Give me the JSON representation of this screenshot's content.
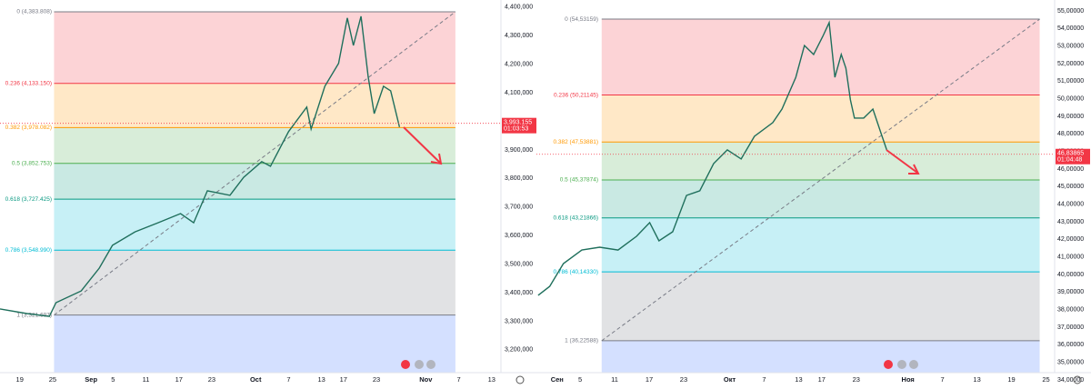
{
  "chart_data": [
    {
      "type": "line",
      "color": "#1f6f5c",
      "x": [
        -3.6,
        1.3,
        5.4,
        6.6,
        11.2,
        14.5,
        16.9,
        21,
        25.2,
        29.3,
        31.7,
        34.2,
        38.3,
        40.8,
        44.1,
        45.7,
        49,
        52.3,
        53.1,
        55.6,
        58.1,
        59.7,
        60.8,
        62.2,
        63.5,
        64.6,
        66.3,
        67.6,
        69.2
      ],
      "values": [
        3343000,
        3327000,
        3317000,
        3365000,
        3406000,
        3486000,
        3566000,
        3613000,
        3645000,
        3677000,
        3645000,
        3757000,
        3741000,
        3804000,
        3859000,
        3843000,
        3964000,
        4050000,
        3973000,
        4123000,
        4203000,
        4362000,
        4266000,
        4368000,
        4155000,
        4027000,
        4123000,
        4107000,
        3980000
      ],
      "xlim": [
        -3.6,
        87.7
      ],
      "xticks": [
        {
          "value": 0,
          "label": "19"
        },
        {
          "value": 6,
          "label": "25"
        },
        {
          "value": 13,
          "label": "Sep"
        },
        {
          "value": 17,
          "label": "5"
        },
        {
          "value": 23,
          "label": "11"
        },
        {
          "value": 29,
          "label": "17"
        },
        {
          "value": 35,
          "label": "23"
        },
        {
          "value": 43,
          "label": "Oct"
        },
        {
          "value": 49,
          "label": "7"
        },
        {
          "value": 55,
          "label": "13"
        },
        {
          "value": 59,
          "label": "17"
        },
        {
          "value": 65,
          "label": "23"
        },
        {
          "value": 74,
          "label": "Nov"
        },
        {
          "value": 80,
          "label": "7"
        },
        {
          "value": 86,
          "label": "13"
        }
      ],
      "ylim": [
        3120000,
        4425000
      ],
      "yticks": [
        {
          "value": 3200000,
          "label": "3,200,000"
        },
        {
          "value": 3300000,
          "label": "3,300,000"
        },
        {
          "value": 3400000,
          "label": "3,400,000"
        },
        {
          "value": 3500000,
          "label": "3,500,000"
        },
        {
          "value": 3600000,
          "label": "3,600,000"
        },
        {
          "value": 3700000,
          "label": "3,700,000"
        },
        {
          "value": 3800000,
          "label": "3,800,000"
        },
        {
          "value": 3900000,
          "label": "3,900,000"
        },
        {
          "value": 4000000,
          "label": "4,000,000"
        },
        {
          "value": 4100000,
          "label": "4,100,000"
        },
        {
          "value": 4200000,
          "label": "4,200,000"
        },
        {
          "value": 4300000,
          "label": "4,300,000"
        },
        {
          "value": 4400000,
          "label": "4,400,000"
        }
      ],
      "fib_levels": [
        {
          "value": 4383808,
          "label": "0 (4,383.808)",
          "color": "#787b86"
        },
        {
          "value": 4133150,
          "label": "0.236 (4,133.150)",
          "color": "#f23645"
        },
        {
          "value": 3978082,
          "label": "0.382 (3,978.082)",
          "color": "#ff9800"
        },
        {
          "value": 3852753,
          "label": "0.5 (3,852.753)",
          "color": "#4caf50"
        },
        {
          "value": 3727425,
          "label": "0.618 (3,727.425)",
          "color": "#089981"
        },
        {
          "value": 3548990,
          "label": "0.786 (3,548.990)",
          "color": "#00bcd4"
        },
        {
          "value": 3321697,
          "label": "1 (3,321.697)",
          "color": "#787b86"
        }
      ],
      "last_price": {
        "value": 3993155,
        "label": "3,993.155"
      },
      "countdown": "01:03:53"
    },
    {
      "type": "line",
      "color": "#1f6f5c",
      "x": [
        -3.3,
        -1.3,
        1.1,
        4.3,
        7.4,
        10.6,
        13.8,
        16.1,
        17.7,
        20.1,
        22.5,
        24.8,
        27.2,
        29.6,
        32,
        34.3,
        37.5,
        39.1,
        41.5,
        43,
        44.6,
        46.2,
        47.3,
        48.3,
        49.4,
        50.2,
        51,
        51.7,
        53.3,
        54.9,
        56.5,
        57.3
      ],
      "values": [
        38.81,
        39.32,
        40.62,
        41.39,
        41.55,
        41.39,
        42.17,
        42.95,
        41.91,
        42.43,
        44.5,
        44.76,
        46.31,
        47.09,
        46.57,
        47.86,
        48.64,
        49.41,
        51.22,
        53.03,
        52.52,
        53.55,
        54.33,
        51.22,
        52.52,
        51.74,
        49.93,
        48.9,
        48.9,
        49.41,
        47.86,
        47.09
      ],
      "xlim": [
        -3.6,
        86.5
      ],
      "xticks": [
        {
          "value": 0,
          "label": "Сен"
        },
        {
          "value": 4,
          "label": "5"
        },
        {
          "value": 10,
          "label": "11"
        },
        {
          "value": 16,
          "label": "17"
        },
        {
          "value": 22,
          "label": "23"
        },
        {
          "value": 30,
          "label": "Окт"
        },
        {
          "value": 36,
          "label": "7"
        },
        {
          "value": 42,
          "label": "13"
        },
        {
          "value": 46,
          "label": "17"
        },
        {
          "value": 52,
          "label": "23"
        },
        {
          "value": 61,
          "label": "Ноя"
        },
        {
          "value": 67,
          "label": "7"
        },
        {
          "value": 73,
          "label": "13"
        },
        {
          "value": 79,
          "label": "19"
        },
        {
          "value": 85,
          "label": "25"
        }
      ],
      "ylim": [
        34.41,
        55.62
      ],
      "yticks": [
        {
          "value": 34,
          "label": "34,00000"
        },
        {
          "value": 35,
          "label": "35,00000"
        },
        {
          "value": 36,
          "label": "36,00000"
        },
        {
          "value": 37,
          "label": "37,00000"
        },
        {
          "value": 38,
          "label": "38,00000"
        },
        {
          "value": 39,
          "label": "39,00000"
        },
        {
          "value": 40,
          "label": "40,00000"
        },
        {
          "value": 41,
          "label": "41,00000"
        },
        {
          "value": 42,
          "label": "42,00000"
        },
        {
          "value": 43,
          "label": "43,00000"
        },
        {
          "value": 44,
          "label": "44,00000"
        },
        {
          "value": 45,
          "label": "45,00000"
        },
        {
          "value": 46,
          "label": "46,00000"
        },
        {
          "value": 47,
          "label": "47,00000"
        },
        {
          "value": 48,
          "label": "48,00000"
        },
        {
          "value": 49,
          "label": "49,00000"
        },
        {
          "value": 50,
          "label": "50,00000"
        },
        {
          "value": 51,
          "label": "51,00000"
        },
        {
          "value": 52,
          "label": "52,00000"
        },
        {
          "value": 53,
          "label": "53,00000"
        },
        {
          "value": 54,
          "label": "54,00000"
        },
        {
          "value": 55,
          "label": "55,00000"
        }
      ],
      "fib_levels": [
        {
          "value": 54.53159,
          "label": "0 (54,53159)",
          "color": "#787b86"
        },
        {
          "value": 50.21145,
          "label": "0.236 (50,21145)",
          "color": "#f23645"
        },
        {
          "value": 47.53881,
          "label": "0.382 (47,53881)",
          "color": "#ff9800"
        },
        {
          "value": 45.37874,
          "label": "0.5 (45,37874)",
          "color": "#4caf50"
        },
        {
          "value": 43.21866,
          "label": "0.618 (43,21866)",
          "color": "#089981"
        },
        {
          "value": 40.1433,
          "label": "0.786 (40,14330)",
          "color": "#00bcd4"
        },
        {
          "value": 36.22588,
          "label": "1 (36,22588)",
          "color": "#787b86"
        }
      ],
      "last_price": {
        "value": 46.83865,
        "label": "46,83865"
      },
      "countdown": "01:04:48"
    }
  ]
}
